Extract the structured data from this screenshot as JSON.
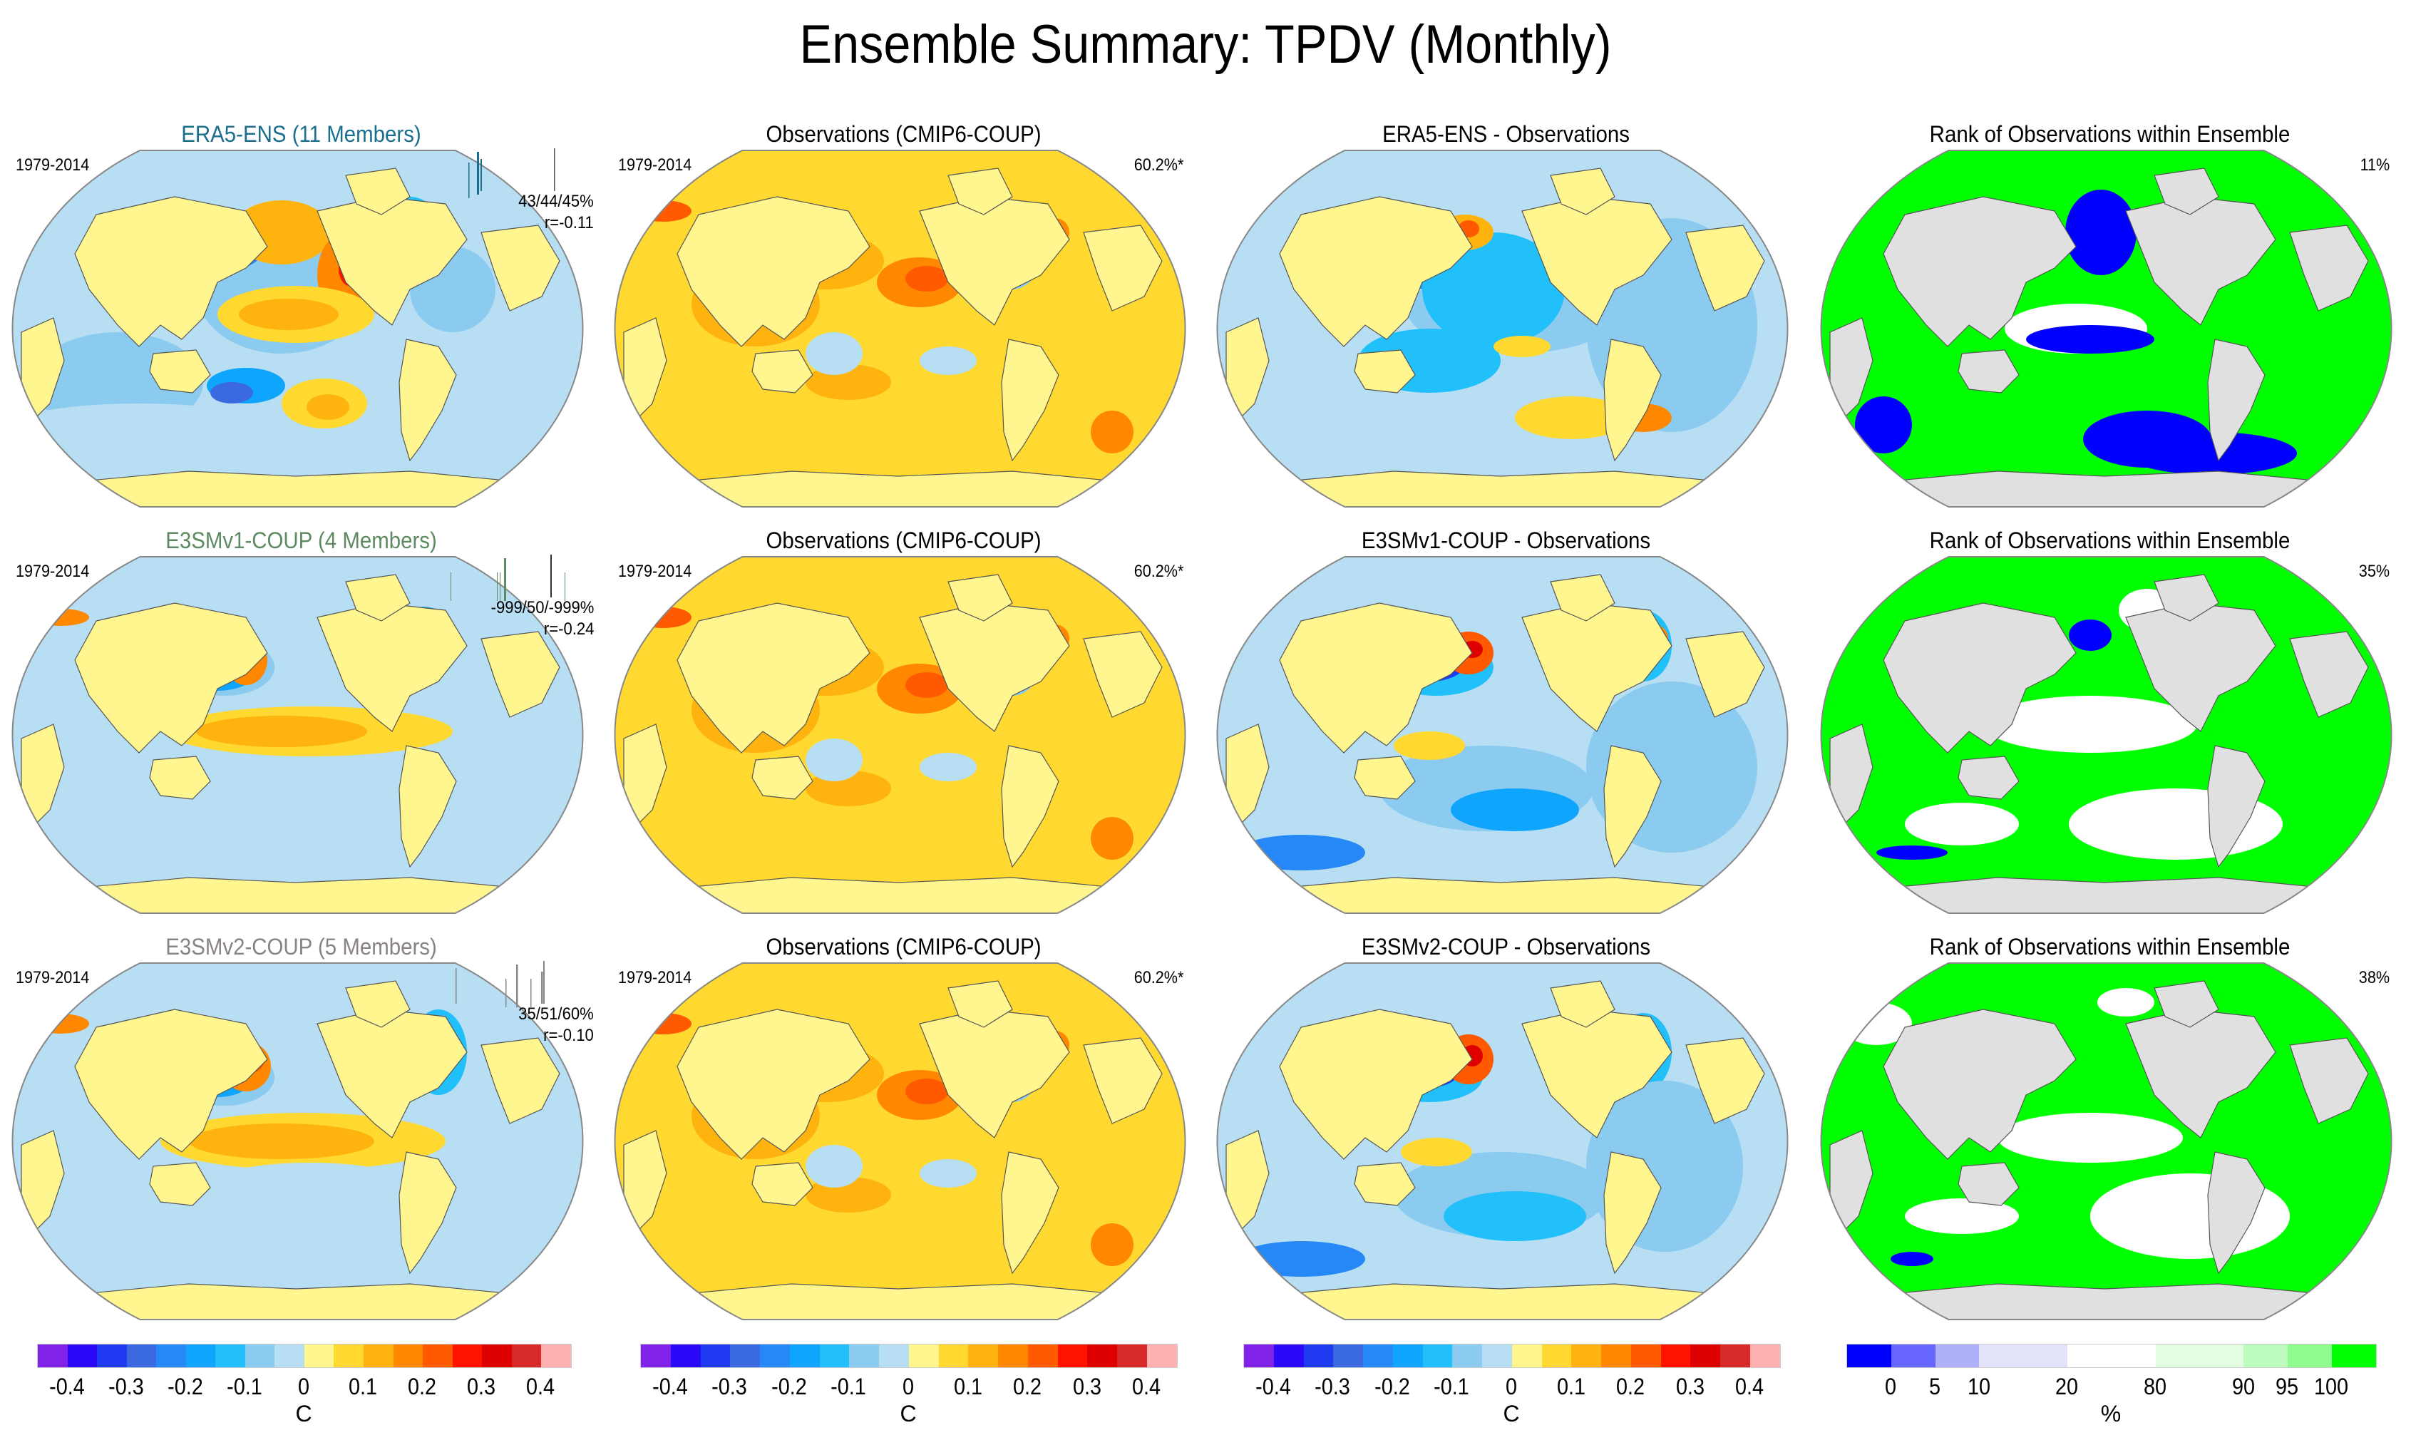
{
  "title": "Ensemble Summary: TPDV (Monthly)",
  "colors": {
    "land_anomaly": "#fff68f",
    "land_rank": "#e0e0e0",
    "outline": "#888888"
  },
  "chart_data": {
    "type": "heatmap",
    "title": "Ensemble Summary: TPDV (Monthly)",
    "projection": "global map (Pacific-centered, flat-pole elliptical)",
    "rows": [
      {
        "ensemble": "ERA5-ENS",
        "members": 11,
        "title_color": "#1a6e8e",
        "panels": [
          {
            "title": "ERA5-ENS (11 Members)",
            "period": "1979-2014",
            "stats": "43/44/45%",
            "r": "r=-0.11",
            "kind": "ensemble_mean"
          },
          {
            "title": "Observations (CMIP6-COUP)",
            "period": "1979-2014",
            "corner": "60.2%*",
            "kind": "observations"
          },
          {
            "title": "ERA5-ENS - Observations",
            "kind": "difference"
          },
          {
            "title": "Rank of Observations within Ensemble",
            "corner": "11%",
            "kind": "rank"
          }
        ]
      },
      {
        "ensemble": "E3SMv1-COUP",
        "members": 4,
        "title_color": "#5e8a62",
        "panels": [
          {
            "title": "E3SMv1-COUP (4 Members)",
            "period": "1979-2014",
            "stats": "-999/50/-999%",
            "r": "r=-0.24",
            "kind": "ensemble_mean"
          },
          {
            "title": "Observations (CMIP6-COUP)",
            "period": "1979-2014",
            "corner": "60.2%*",
            "kind": "observations"
          },
          {
            "title": "E3SMv1-COUP - Observations",
            "kind": "difference"
          },
          {
            "title": "Rank of Observations within Ensemble",
            "corner": "35%",
            "kind": "rank"
          }
        ]
      },
      {
        "ensemble": "E3SMv2-COUP",
        "members": 5,
        "title_color": "#8a8384",
        "panels": [
          {
            "title": "E3SMv2-COUP (5 Members)",
            "period": "1979-2014",
            "stats": "35/51/60%",
            "r": "r=-0.10",
            "kind": "ensemble_mean"
          },
          {
            "title": "Observations (CMIP6-COUP)",
            "period": "1979-2014",
            "corner": "60.2%*",
            "kind": "observations"
          },
          {
            "title": "E3SMv2-COUP - Observations",
            "kind": "difference"
          },
          {
            "title": "Rank of Observations within Ensemble",
            "corner": "38%",
            "kind": "rank"
          }
        ]
      }
    ],
    "colorbars": [
      {
        "unit": "C",
        "ticks": [
          "-0.4",
          "-0.3",
          "-0.2",
          "-0.1",
          "0",
          "0.1",
          "0.2",
          "0.3",
          "0.4"
        ],
        "colors": [
          "#8122e8",
          "#2a08f8",
          "#1f3af0",
          "#3b6ae0",
          "#2588f6",
          "#0fa5fc",
          "#22c0fb",
          "#8acbef",
          "#b7def2",
          "#fff68f",
          "#ffd830",
          "#ffb30f",
          "#ff8800",
          "#ff5a00",
          "#ff1300",
          "#de0000",
          "#d62a2a",
          "#ffb0b0"
        ]
      },
      {
        "unit": "%",
        "ticks": [
          "0",
          "5",
          "10",
          "20",
          "80",
          "90",
          "95",
          "100"
        ],
        "boundaries": [
          0,
          5,
          10,
          20,
          80,
          90,
          95,
          100
        ],
        "colors": [
          "#0000ff",
          "#6666ff",
          "#b0b0fa",
          "#e2e2fa",
          "#ffffff",
          "#e2fde2",
          "#bdfcbd",
          "#90fc90",
          "#00ff00"
        ]
      }
    ]
  }
}
